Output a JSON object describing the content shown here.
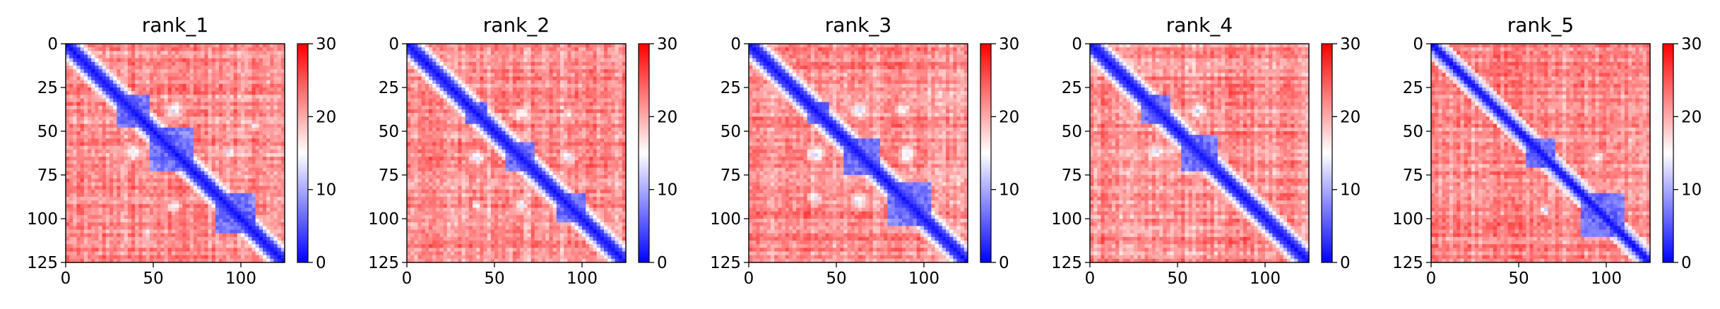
{
  "chart_data": [
    {
      "type": "heatmap",
      "title": "rank_1",
      "xlim": [
        0,
        125
      ],
      "ylim": [
        125,
        0
      ],
      "x_ticks": [
        0,
        50,
        100
      ],
      "y_ticks": [
        0,
        25,
        50,
        75,
        100,
        125
      ],
      "colorbar": {
        "min": 0,
        "max": 30,
        "ticks": [
          0,
          10,
          20,
          30
        ],
        "colormap": "bwr"
      },
      "diagonal_width": 5,
      "blocks": [
        [
          30,
          48
        ],
        [
          48,
          72
        ],
        [
          85,
          108
        ]
      ],
      "offdiag": [
        [
          38,
          62,
          0.8
        ],
        [
          62,
          93,
          0.6
        ],
        [
          47,
          108,
          0.4
        ]
      ],
      "noise_seed": 11
    },
    {
      "type": "heatmap",
      "title": "rank_2",
      "xlim": [
        0,
        125
      ],
      "ylim": [
        125,
        0
      ],
      "x_ticks": [
        0,
        50,
        100
      ],
      "y_ticks": [
        0,
        25,
        50,
        75,
        100,
        125
      ],
      "colorbar": {
        "min": 0,
        "max": 30,
        "ticks": [
          0,
          10,
          20,
          30
        ],
        "colormap": "bwr"
      },
      "diagonal_width": 5,
      "blocks": [
        [
          33,
          45
        ],
        [
          57,
          72
        ],
        [
          85,
          103
        ]
      ],
      "offdiag": [
        [
          40,
          65,
          0.7
        ],
        [
          65,
          92,
          0.7
        ],
        [
          40,
          92,
          0.4
        ]
      ],
      "noise_seed": 23
    },
    {
      "type": "heatmap",
      "title": "rank_3",
      "xlim": [
        0,
        125
      ],
      "ylim": [
        125,
        0
      ],
      "x_ticks": [
        0,
        50,
        100
      ],
      "y_ticks": [
        0,
        25,
        50,
        75,
        100,
        125
      ],
      "colorbar": {
        "min": 0,
        "max": 30,
        "ticks": [
          0,
          10,
          20,
          30
        ],
        "colormap": "bwr"
      },
      "diagonal_width": 5,
      "blocks": [
        [
          33,
          45
        ],
        [
          55,
          75
        ],
        [
          80,
          105
        ]
      ],
      "offdiag": [
        [
          38,
          63,
          0.9
        ],
        [
          63,
          90,
          0.8
        ],
        [
          38,
          88,
          0.7
        ]
      ],
      "noise_seed": 37
    },
    {
      "type": "heatmap",
      "title": "rank_4",
      "xlim": [
        0,
        125
      ],
      "ylim": [
        125,
        0
      ],
      "x_ticks": [
        0,
        50,
        100
      ],
      "y_ticks": [
        0,
        25,
        50,
        75,
        100,
        125
      ],
      "colorbar": {
        "min": 0,
        "max": 30,
        "ticks": [
          0,
          10,
          20,
          30
        ],
        "colormap": "bwr"
      },
      "diagonal_width": 5,
      "blocks": [
        [
          30,
          45
        ],
        [
          52,
          72
        ]
      ],
      "offdiag": [
        [
          38,
          62,
          0.8
        ]
      ],
      "noise_seed": 41
    },
    {
      "type": "heatmap",
      "title": "rank_5",
      "xlim": [
        0,
        125
      ],
      "ylim": [
        125,
        0
      ],
      "x_ticks": [
        0,
        50,
        100
      ],
      "y_ticks": [
        0,
        25,
        50,
        75,
        100,
        125
      ],
      "colorbar": {
        "min": 0,
        "max": 30,
        "ticks": [
          0,
          10,
          20,
          30
        ],
        "colormap": "bwr"
      },
      "diagonal_width": 4,
      "blocks": [
        [
          55,
          70
        ],
        [
          85,
          110
        ]
      ],
      "offdiag": [
        [
          65,
          95,
          0.5
        ]
      ],
      "noise_seed": 53
    }
  ]
}
